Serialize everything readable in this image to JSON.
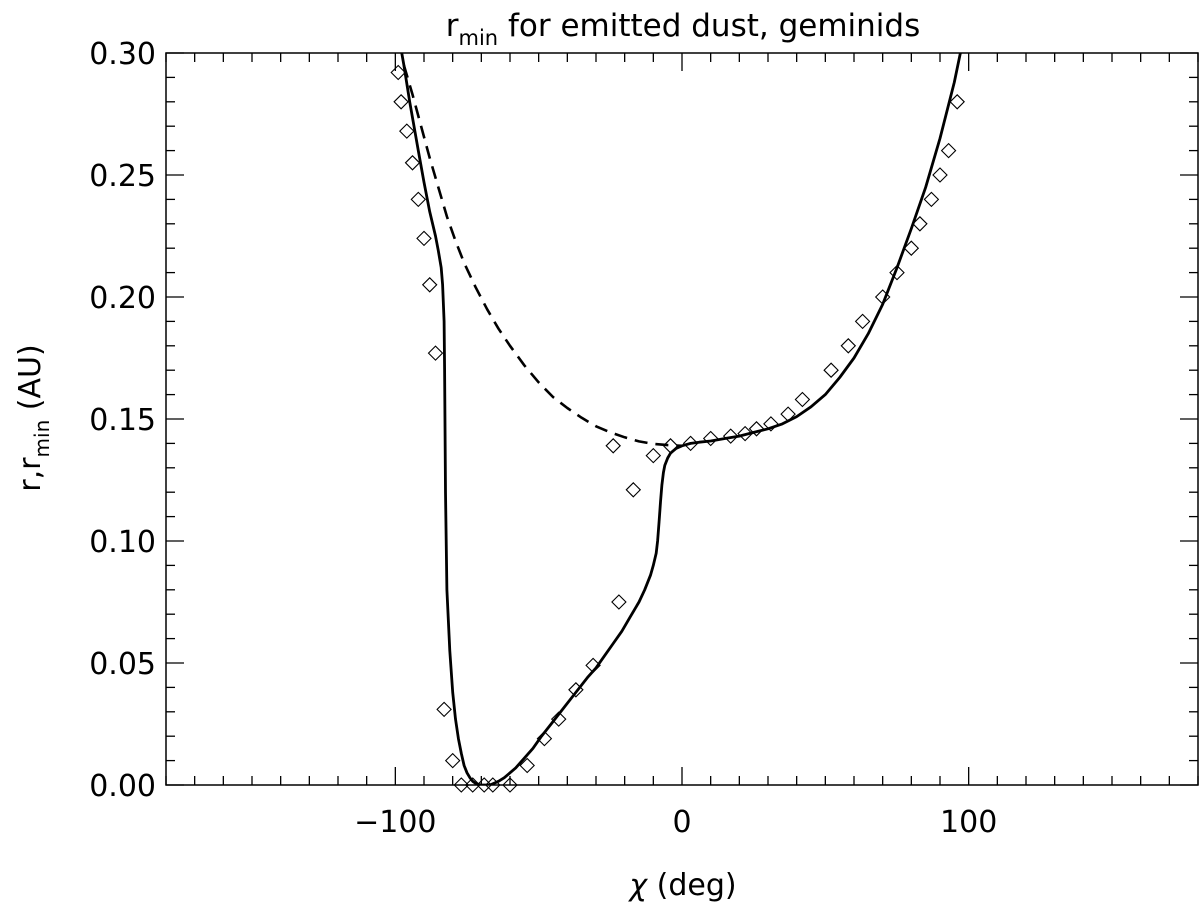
{
  "chart_data": {
    "type": "line",
    "title": {
      "main": "r",
      "sub": "min",
      "rest": " for emitted dust, geminids"
    },
    "xlabel": {
      "symbol": "χ",
      "rest": " (deg)"
    },
    "ylabel": {
      "a": "r,r",
      "sub": "min",
      "b": " (AU)"
    },
    "xlim": [
      -180,
      180
    ],
    "ylim": [
      0.0,
      0.3
    ],
    "x_ticks": [
      -100,
      0,
      100
    ],
    "x_tick_labels": [
      "−100",
      "0",
      "100"
    ],
    "x_minor_step": 10,
    "y_ticks": [
      0.0,
      0.05,
      0.1,
      0.15,
      0.2,
      0.25,
      0.3
    ],
    "y_tick_labels": [
      "0.00",
      "0.05",
      "0.10",
      "0.15",
      "0.20",
      "0.25",
      "0.30"
    ],
    "y_minor_step": 0.01,
    "grid": false,
    "series": [
      {
        "style": "solid",
        "x": [
          -100,
          -97,
          -95,
          -92,
          -90,
          -88,
          -86,
          -85,
          -84,
          -83.5,
          -83,
          -82.8,
          -82.5,
          -82,
          -81,
          -80,
          -79,
          -78,
          -77,
          -76,
          -75,
          -74,
          -73,
          -72,
          -71,
          -70,
          -69,
          -68,
          -67,
          -66,
          -64,
          -62,
          -60,
          -58,
          -55,
          -52,
          -49,
          -45,
          -41,
          -37,
          -33,
          -30,
          -27,
          -24,
          -21,
          -18,
          -15,
          -13,
          -11,
          -10,
          -9,
          -8.5,
          -8,
          -7.5,
          -7,
          -6.5,
          -6,
          -5,
          -4,
          -3,
          -2,
          0,
          3,
          6,
          10,
          15,
          20,
          25,
          30,
          35,
          40,
          45,
          50,
          55,
          60,
          65,
          70,
          75,
          80,
          85,
          90,
          95,
          98,
          100
        ],
        "y": [
          0.315,
          0.295,
          0.28,
          0.26,
          0.247,
          0.235,
          0.225,
          0.219,
          0.212,
          0.205,
          0.19,
          0.17,
          0.12,
          0.08,
          0.055,
          0.038,
          0.027,
          0.019,
          0.013,
          0.008,
          0.005,
          0.003,
          0.0015,
          0.0007,
          0.0002,
          0.0,
          0.0,
          0.0,
          0.0,
          0.0005,
          0.0015,
          0.003,
          0.005,
          0.007,
          0.011,
          0.015,
          0.02,
          0.026,
          0.032,
          0.038,
          0.044,
          0.048,
          0.053,
          0.058,
          0.063,
          0.069,
          0.075,
          0.08,
          0.086,
          0.09,
          0.095,
          0.1,
          0.108,
          0.116,
          0.123,
          0.128,
          0.131,
          0.134,
          0.136,
          0.137,
          0.138,
          0.139,
          0.14,
          0.1405,
          0.141,
          0.142,
          0.143,
          0.1445,
          0.146,
          0.148,
          0.151,
          0.155,
          0.16,
          0.167,
          0.175,
          0.185,
          0.197,
          0.212,
          0.228,
          0.245,
          0.265,
          0.288,
          0.305,
          0.315
        ]
      },
      {
        "style": "dashed",
        "x": [
          -97,
          -94,
          -91,
          -88,
          -85,
          -82,
          -79,
          -76,
          -72,
          -68,
          -64,
          -60,
          -55,
          -50,
          -45,
          -40,
          -35,
          -30,
          -25,
          -20,
          -15,
          -10,
          -5,
          0
        ],
        "y": [
          0.295,
          0.283,
          0.27,
          0.257,
          0.245,
          0.233,
          0.223,
          0.214,
          0.204,
          0.195,
          0.187,
          0.18,
          0.172,
          0.165,
          0.159,
          0.1545,
          0.1505,
          0.147,
          0.1445,
          0.1425,
          0.1408,
          0.1398,
          0.1393,
          0.139
        ]
      },
      {
        "style": "markers",
        "marker": "diamond",
        "x": [
          -99,
          -98,
          -96,
          -94,
          -92,
          -90,
          -88,
          -86,
          -83,
          -80,
          -77,
          -73,
          -69,
          -66,
          -60,
          -54,
          -48,
          -43,
          -37,
          -31,
          -24,
          -22,
          -17,
          -10,
          -4,
          3,
          10,
          17,
          22,
          26,
          31,
          37,
          42,
          52,
          58,
          63,
          70,
          75,
          80,
          83,
          87,
          90,
          93,
          96
        ],
        "y": [
          0.292,
          0.28,
          0.268,
          0.255,
          0.24,
          0.224,
          0.205,
          0.177,
          0.031,
          0.01,
          0.0,
          0.0,
          0.0,
          0.0,
          0.0,
          0.008,
          0.019,
          0.027,
          0.039,
          0.049,
          0.139,
          0.075,
          0.121,
          0.135,
          0.139,
          0.14,
          0.142,
          0.143,
          0.144,
          0.146,
          0.148,
          0.152,
          0.158,
          0.17,
          0.18,
          0.19,
          0.2,
          0.21,
          0.22,
          0.23,
          0.24,
          0.25,
          0.26,
          0.28
        ]
      }
    ]
  }
}
